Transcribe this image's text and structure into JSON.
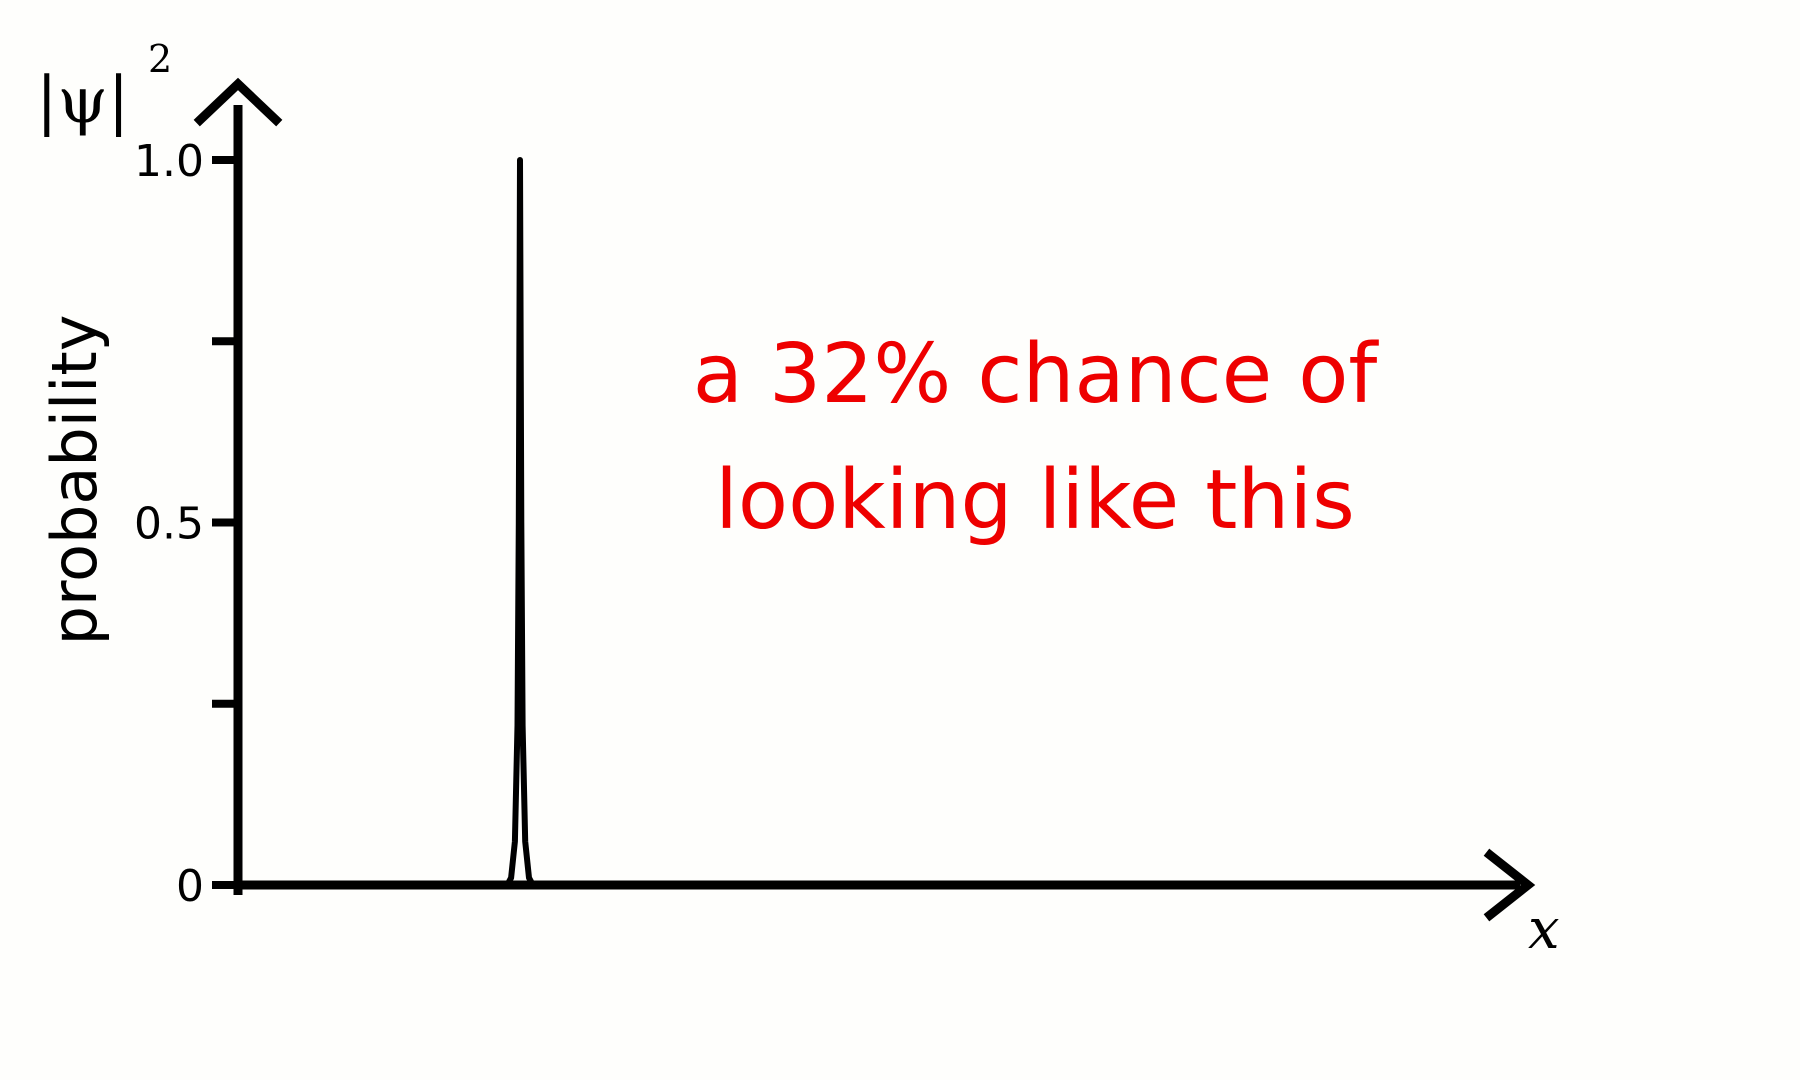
{
  "chart_data": {
    "type": "line",
    "ylabel": "probability",
    "ylabel_top": "|ψ|",
    "ylabel_top_exponent": "2",
    "xlabel": "x",
    "ylim": [
      0,
      1.0
    ],
    "y_ticks": [
      0,
      0.25,
      0.5,
      0.75,
      1.0
    ],
    "y_tick_labels": [
      {
        "value": 0,
        "label": "0"
      },
      {
        "value": 0.5,
        "label": "0.5"
      },
      {
        "value": 1.0,
        "label": "1.0"
      }
    ],
    "xlim": [
      0,
      1
    ],
    "grid": false,
    "legend": "none",
    "series": [
      {
        "color": "#000000",
        "shape": "narrow-peak",
        "peak_x": 0.22,
        "peak_y": 1.0,
        "x": [
          0.0,
          0.21,
          0.213,
          0.216,
          0.218,
          0.219,
          0.22,
          0.221,
          0.222,
          0.224,
          0.227,
          0.23,
          1.0
        ],
        "y": [
          0.0,
          0.0,
          0.01,
          0.06,
          0.22,
          0.5,
          1.0,
          0.5,
          0.22,
          0.06,
          0.01,
          0.0,
          0.0
        ]
      }
    ],
    "annotation": {
      "lines": [
        "a 32% chance of",
        "looking like this"
      ],
      "color": "#ee0000"
    }
  }
}
